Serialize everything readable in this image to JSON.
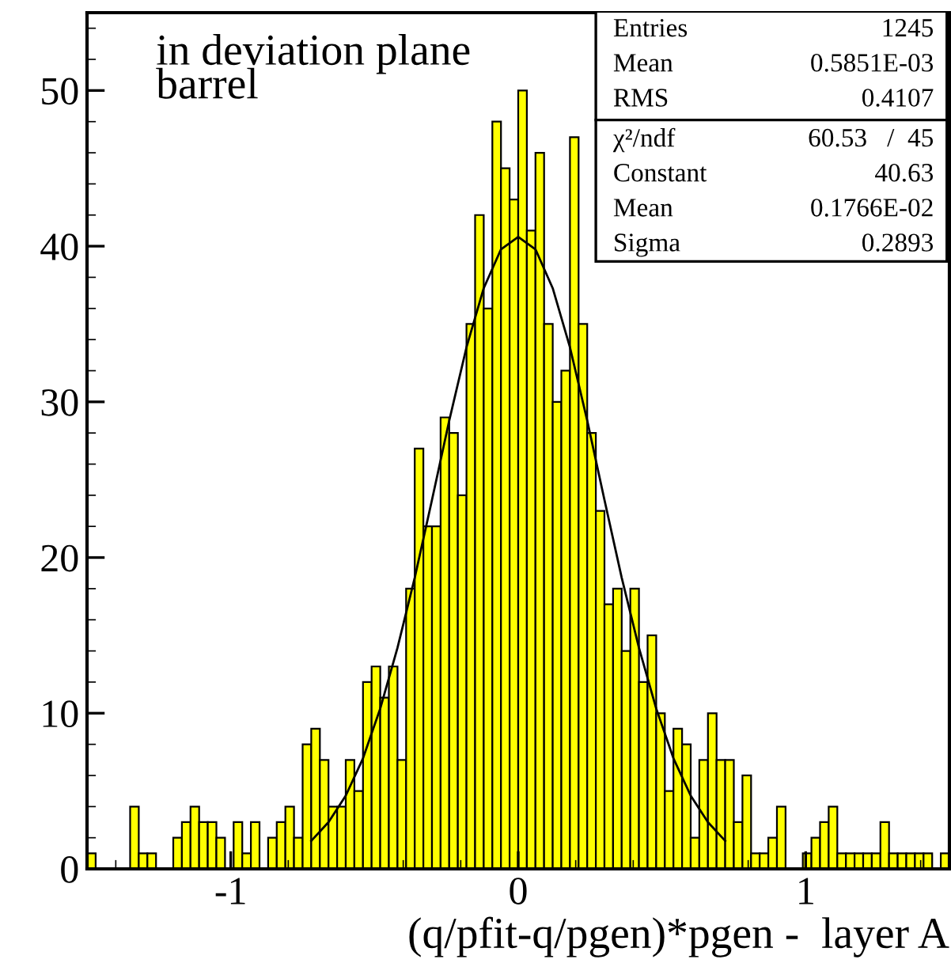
{
  "chart_data": {
    "type": "histogram",
    "xlabel": "(q/pfit-q/pgen)*pgen -  layer A",
    "bins": [
      -1.5,
      -1.47,
      -1.44,
      -1.41,
      -1.38,
      -1.35,
      -1.32,
      -1.29,
      -1.26,
      -1.23,
      -1.2,
      -1.17,
      -1.14,
      -1.11,
      -1.08,
      -1.05,
      -1.02,
      -0.99,
      -0.96,
      -0.93,
      -0.9,
      -0.87,
      -0.84,
      -0.81,
      -0.78,
      -0.75,
      -0.72,
      -0.69,
      -0.66,
      -0.63,
      -0.6,
      -0.57,
      -0.54,
      -0.51,
      -0.48,
      -0.45,
      -0.42,
      -0.39,
      -0.36,
      -0.33,
      -0.3,
      -0.27,
      -0.24,
      -0.21,
      -0.18,
      -0.15,
      -0.12,
      -0.09,
      -0.06,
      -0.03,
      0,
      0.03,
      0.06,
      0.09,
      0.12,
      0.15,
      0.18,
      0.21,
      0.24,
      0.27,
      0.3,
      0.33,
      0.36,
      0.39,
      0.42,
      0.45,
      0.48,
      0.51,
      0.54,
      0.57,
      0.6,
      0.63,
      0.66,
      0.69,
      0.72,
      0.75,
      0.78,
      0.81,
      0.84,
      0.87,
      0.9,
      0.93,
      0.96,
      0.99,
      1.02,
      1.05,
      1.08,
      1.11,
      1.14,
      1.17,
      1.2,
      1.23,
      1.26,
      1.29,
      1.32,
      1.35,
      1.38,
      1.41,
      1.44,
      1.47,
      1.5
    ],
    "values": [
      1,
      0,
      0,
      0,
      0,
      4,
      1,
      1,
      0,
      0,
      2,
      3,
      4,
      3,
      3,
      2,
      0,
      3,
      1,
      3,
      0,
      2,
      3,
      4,
      2,
      8,
      9,
      7,
      4,
      4,
      7,
      5,
      12,
      13,
      11,
      13,
      7,
      18,
      27,
      22,
      22,
      29,
      28,
      24,
      35,
      42,
      36,
      48,
      45,
      43,
      50,
      41,
      46,
      35,
      30,
      32,
      47,
      35,
      28,
      23,
      17,
      18,
      14,
      18,
      12,
      15,
      10,
      5,
      9,
      8,
      2,
      7,
      10,
      7,
      7,
      3,
      6,
      1,
      1,
      2,
      4,
      0,
      0,
      1,
      2,
      3,
      4,
      1,
      1,
      1,
      1,
      1,
      3,
      1,
      1,
      1,
      1,
      1,
      0,
      1
    ],
    "color": "#ffff00",
    "series": [
      {
        "type": "line",
        "color": "#000000",
        "x": [
          -0.72,
          -0.66,
          -0.6,
          -0.54,
          -0.48,
          -0.42,
          -0.36,
          -0.3,
          -0.24,
          -0.18,
          -0.12,
          -0.06,
          0,
          0.06,
          0.12,
          0.18,
          0.24,
          0.3,
          0.36,
          0.42,
          0.48,
          0.54,
          0.6,
          0.66,
          0.72
        ],
        "values": [
          1.8,
          3.0,
          4.7,
          7.1,
          10.3,
          14.2,
          18.7,
          23.7,
          28.8,
          33.5,
          37.3,
          39.8,
          40.6,
          39.8,
          37.3,
          33.5,
          28.8,
          23.7,
          18.7,
          14.2,
          10.3,
          7.1,
          4.7,
          3.0,
          1.8
        ]
      }
    ],
    "xlim": [
      -1.5,
      1.5
    ],
    "ylim": [
      0,
      55
    ],
    "xticks": [
      -1,
      0,
      1
    ],
    "yticks": [
      0,
      10,
      20,
      30,
      40,
      50
    ],
    "grid": false,
    "line_style": "solid",
    "marker": "none",
    "annotations": [
      "in deviation plane\nbarrel",
      "Entries",
      "1245",
      "Mean",
      "0.5851E-03",
      "RMS",
      "0.4107",
      "χ²/ndf",
      "60.53   /  45",
      "Constant",
      "40.63",
      "Mean",
      "0.1766E-02",
      "Sigma",
      "0.2893"
    ]
  }
}
